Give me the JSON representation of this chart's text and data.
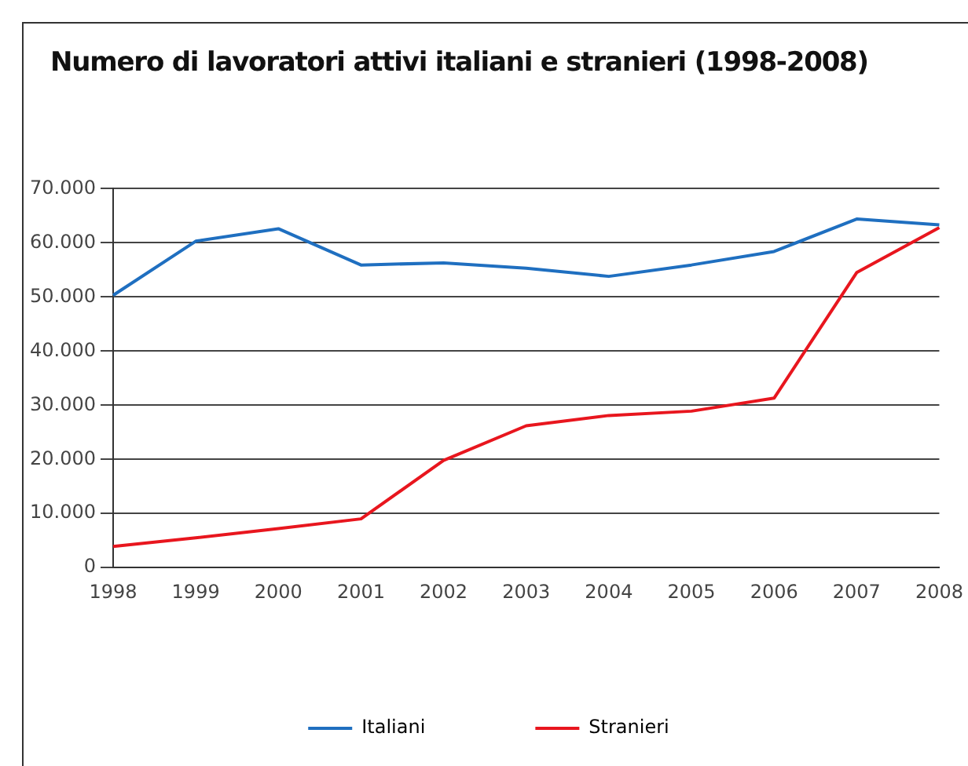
{
  "chart_data": {
    "type": "line",
    "title": "Numero di lavoratori attivi italiani e stranieri (1998-2008)",
    "categories": [
      "1998",
      "1999",
      "2000",
      "2001",
      "2002",
      "2003",
      "2004",
      "2005",
      "2006",
      "2007",
      "2008"
    ],
    "series": [
      {
        "name": "Italiani",
        "color": "#1f6fc0",
        "values": [
          50300,
          60300,
          62600,
          55900,
          56300,
          55300,
          53800,
          55900,
          58400,
          64400,
          63300
        ]
      },
      {
        "name": "Stranieri",
        "color": "#e8161e",
        "values": [
          3900,
          5500,
          7200,
          9000,
          19800,
          26200,
          28100,
          28900,
          31300,
          54500,
          62800
        ]
      }
    ],
    "ylim": [
      0,
      70000
    ],
    "yticks": [
      {
        "value": 0,
        "label": "0"
      },
      {
        "value": 10000,
        "label": "10.000"
      },
      {
        "value": 20000,
        "label": "20.000"
      },
      {
        "value": 30000,
        "label": "30.000"
      },
      {
        "value": 40000,
        "label": "40.000"
      },
      {
        "value": 50000,
        "label": "50.000"
      },
      {
        "value": 60000,
        "label": "60.000"
      },
      {
        "value": 70000,
        "label": "70.000"
      }
    ],
    "grid": "y",
    "legend": "bottom",
    "marker": "none",
    "line_style": "solid"
  }
}
